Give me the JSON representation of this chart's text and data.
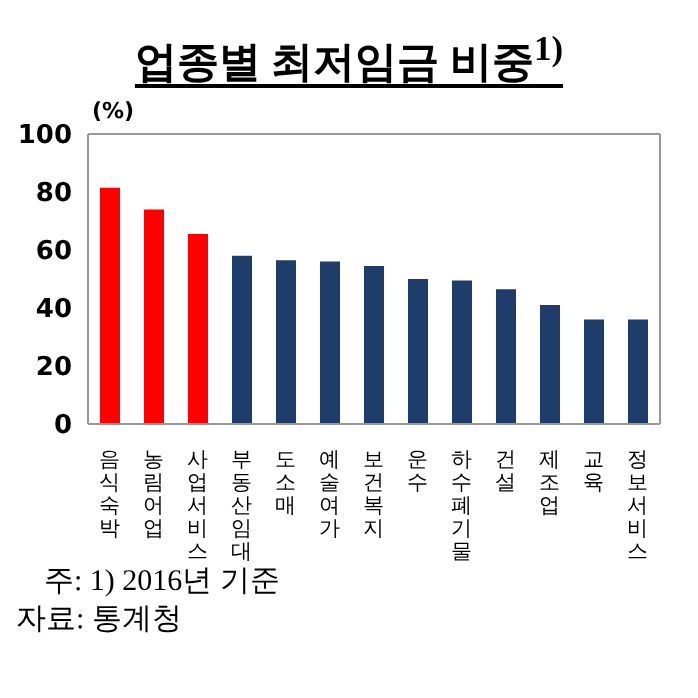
{
  "chart_data": {
    "type": "bar",
    "title": "업종별 최저임금 비중$^{1)}$",
    "ylabel": "(%)",
    "categories": [
      "음식숙박",
      "농림어업",
      "사업서비스",
      "부동산임대",
      "도소매",
      "예술여가",
      "보건복지",
      "운수",
      "하수폐기물",
      "건설",
      "제조업",
      "교육",
      "정보서비스"
    ],
    "values": [
      81.5,
      74,
      65.5,
      58,
      56.5,
      56,
      54.5,
      50,
      49.5,
      46.5,
      41,
      36,
      36
    ],
    "colors": [
      "#ff0000",
      "#ff0000",
      "#ff0000",
      "#1f3d6b",
      "#1f3d6b",
      "#1f3d6b",
      "#1f3d6b",
      "#1f3d6b",
      "#1f3d6b",
      "#1f3d6b",
      "#1f3d6b",
      "#1f3d6b",
      "#1f3d6b"
    ],
    "ylim": [
      0,
      100
    ],
    "yticks": [
      0,
      20,
      40,
      60,
      80,
      100
    ],
    "grid": false,
    "legend": false,
    "annotations": [
      "주: 1) 2016년 기준",
      "자료: 통계청"
    ]
  }
}
